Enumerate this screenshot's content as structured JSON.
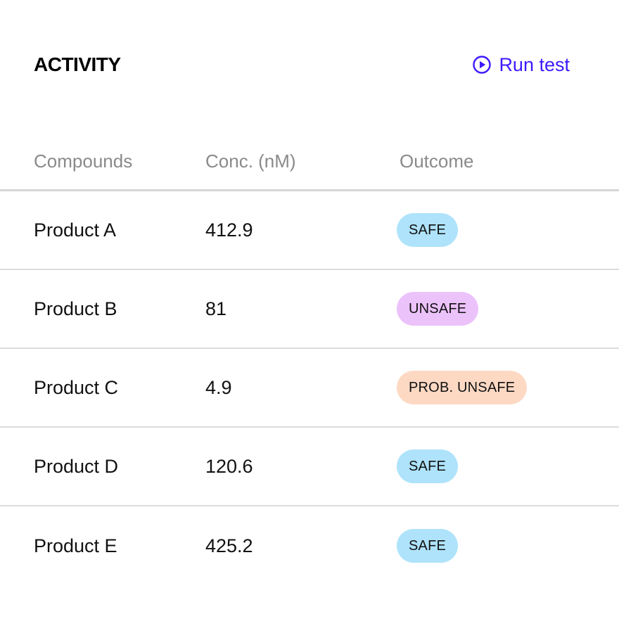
{
  "header": {
    "title": "ACTIVITY",
    "run_label": "Run test",
    "run_icon": "play-circle-icon",
    "accent_color": "#3d1aff"
  },
  "table": {
    "columns": [
      "Compounds",
      "Conc. (nM)",
      "Outcome"
    ],
    "rows": [
      {
        "compound": "Product A",
        "conc": "412.9",
        "outcome": "SAFE",
        "status": "safe"
      },
      {
        "compound": "Product B",
        "conc": "81",
        "outcome": "UNSAFE",
        "status": "unsafe"
      },
      {
        "compound": "Product C",
        "conc": "4.9",
        "outcome": "PROB. UNSAFE",
        "status": "prob_unsafe"
      },
      {
        "compound": "Product D",
        "conc": "120.6",
        "outcome": "SAFE",
        "status": "safe"
      },
      {
        "compound": "Product E",
        "conc": "425.2",
        "outcome": "SAFE",
        "status": "safe"
      }
    ]
  },
  "status_colors": {
    "safe": "#aee3fb",
    "unsafe": "#ecc2fb",
    "prob_unsafe": "#fdd9c4"
  }
}
